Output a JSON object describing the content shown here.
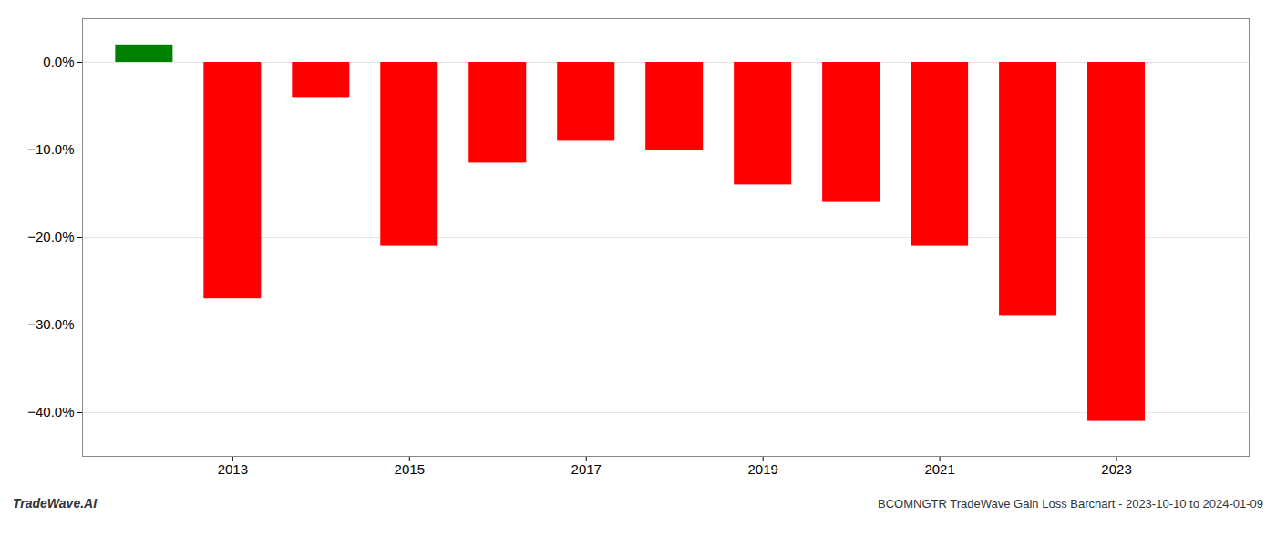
{
  "chart_data": {
    "type": "bar",
    "title": "BCOMNGTR TradeWave Gain Loss Barchart - 2023-10-10 to 2024-01-09",
    "annotations": [
      "TradeWave.AI"
    ],
    "x": [
      2012,
      2013,
      2014,
      2015,
      2016,
      2017,
      2018,
      2019,
      2020,
      2021,
      2022,
      2023
    ],
    "values": [
      2.0,
      -27.0,
      -4.0,
      -21.0,
      -11.5,
      -9.0,
      -10.0,
      -14.0,
      -16.0,
      -21.0,
      -29.0,
      -41.0
    ],
    "colors": [
      "#008000",
      "#ff0000",
      "#ff0000",
      "#ff0000",
      "#ff0000",
      "#ff0000",
      "#ff0000",
      "#ff0000",
      "#ff0000",
      "#ff0000",
      "#ff0000",
      "#ff0000"
    ],
    "xlim": [
      2011.3,
      2024.5
    ],
    "xticks": [
      2013,
      2015,
      2017,
      2019,
      2021,
      2023
    ],
    "ylim": [
      -45,
      5
    ],
    "yticks": [
      {
        "value": 0,
        "label": "0.0%"
      },
      {
        "value": -10,
        "label": "−10.0%"
      },
      {
        "value": -20,
        "label": "−20.0%"
      },
      {
        "value": -30,
        "label": "−30.0%"
      },
      {
        "value": -40,
        "label": "−40.0%"
      }
    ],
    "grid": true
  }
}
